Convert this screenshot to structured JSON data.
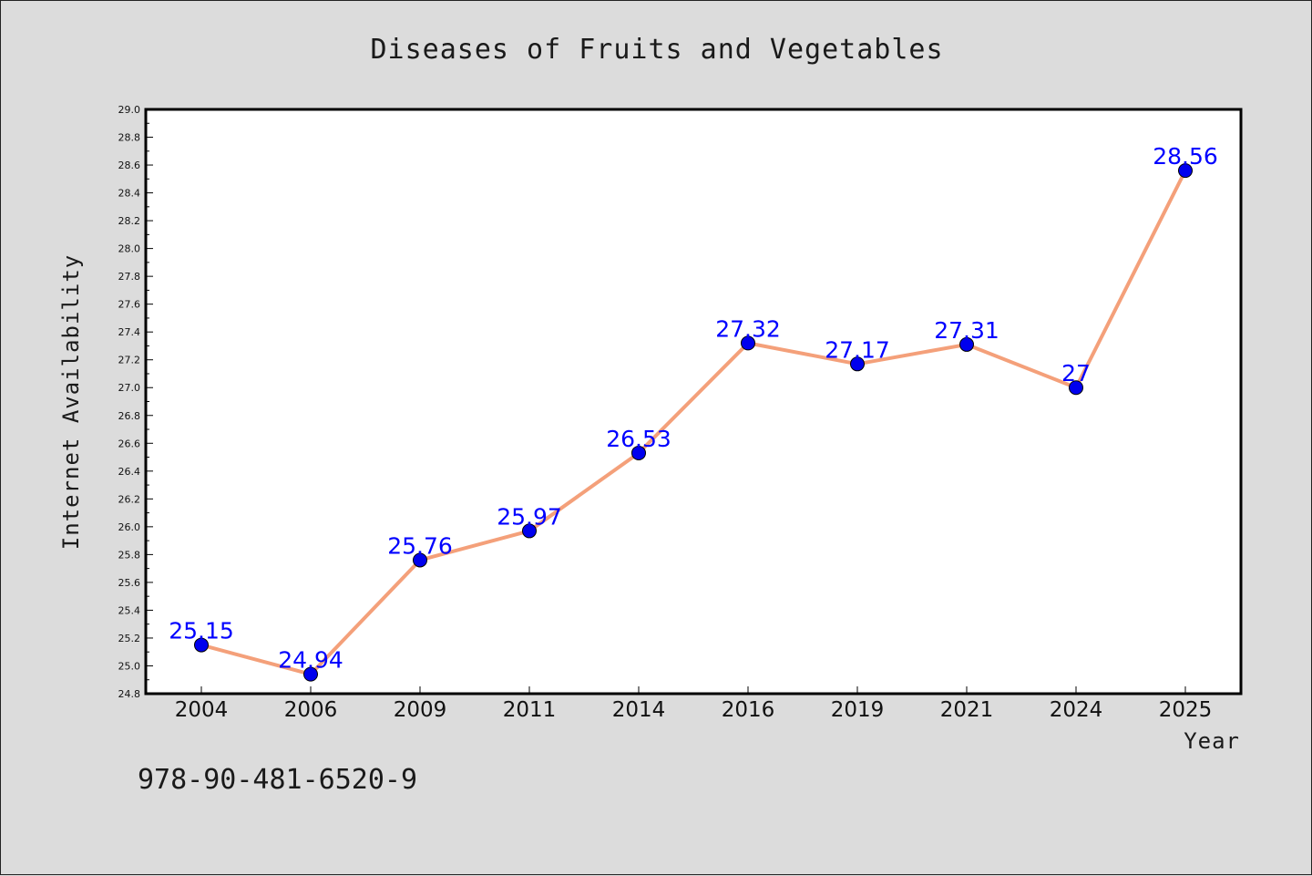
{
  "chart_data": {
    "type": "line",
    "title": "Diseases of Fruits and Vegetables",
    "xlabel": "Year",
    "ylabel": "Internet Availability",
    "categories": [
      "2004",
      "2006",
      "2009",
      "2011",
      "2014",
      "2016",
      "2019",
      "2021",
      "2024",
      "2025"
    ],
    "values": [
      25.15,
      24.94,
      25.76,
      25.97,
      26.53,
      27.32,
      27.17,
      27.31,
      27,
      28.56
    ],
    "data_labels": [
      "25.15",
      "24.94",
      "25.76",
      "25.97",
      "26.53",
      "27.32",
      "27.17",
      "27.31",
      "27",
      "28.56"
    ],
    "ylim": [
      24.8,
      29.0
    ],
    "yticks": [
      "24.8",
      "25.0",
      "25.2",
      "25.4",
      "25.6",
      "25.8",
      "26.0",
      "26.2",
      "26.4",
      "26.6",
      "26.8",
      "27.0",
      "27.2",
      "27.4",
      "27.6",
      "27.8",
      "28.0",
      "28.2",
      "28.4",
      "28.6",
      "28.8",
      "29.0"
    ],
    "grid": false,
    "line_color": "#f4a07a",
    "marker_color": "#0000ee",
    "label_color": "#0000ff"
  },
  "footer": {
    "isbn": "978-90-481-6520-9"
  }
}
